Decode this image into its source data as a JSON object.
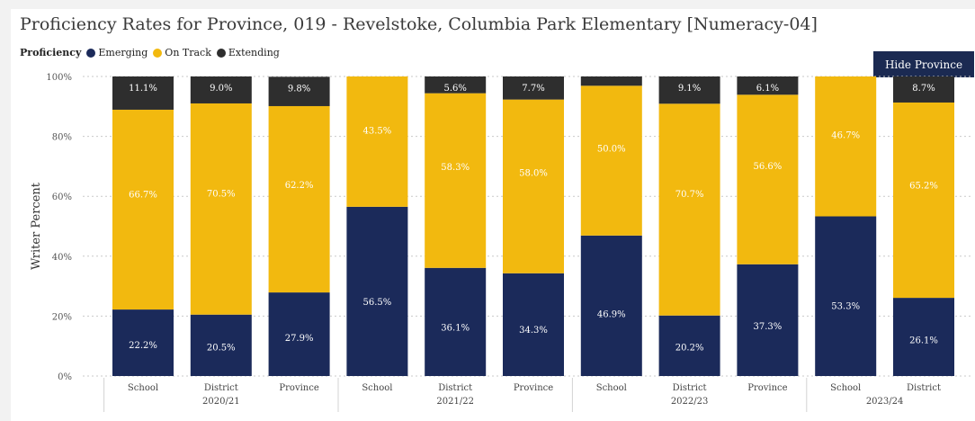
{
  "header": {
    "title": "Proficiency Rates for Province, 019 - Revelstoke, Columbia Park Elementary [Numeracy-04]"
  },
  "legend": {
    "title": "Proficiency",
    "items": [
      {
        "label": "Emerging",
        "color": "#1b2a5a"
      },
      {
        "label": "On Track",
        "color": "#f2b90f"
      },
      {
        "label": "Extending",
        "color": "#2e2e2e"
      }
    ]
  },
  "controls": {
    "hide_province_label": "Hide Province"
  },
  "chart_data": {
    "type": "bar",
    "stacked": true,
    "ylabel": "Writer Percent",
    "ylim": [
      0,
      100
    ],
    "yticks": [
      "0%",
      "20%",
      "40%",
      "60%",
      "80%",
      "100%"
    ],
    "grid": true,
    "legend_position": "top-left",
    "groups": [
      {
        "label": "2020/21",
        "bars": [
          "School",
          "District",
          "Province"
        ]
      },
      {
        "label": "2021/22",
        "bars": [
          "School",
          "District",
          "Province"
        ]
      },
      {
        "label": "2022/23",
        "bars": [
          "School",
          "District",
          "Province"
        ]
      },
      {
        "label": "2023/24",
        "bars": [
          "School",
          "District"
        ]
      }
    ],
    "categories": [
      "School",
      "District",
      "Province",
      "School",
      "District",
      "Province",
      "School",
      "District",
      "Province",
      "School",
      "District"
    ],
    "series": [
      {
        "name": "Emerging",
        "color": "#1b2a5a",
        "values": [
          22.2,
          20.5,
          27.9,
          56.5,
          36.1,
          34.3,
          46.9,
          20.2,
          37.3,
          53.3,
          26.1
        ],
        "labels": [
          "22.2%",
          "20.5%",
          "27.9%",
          "56.5%",
          "36.1%",
          "34.3%",
          "46.9%",
          "20.2%",
          "37.3%",
          "53.3%",
          "26.1%"
        ]
      },
      {
        "name": "On Track",
        "color": "#f2b90f",
        "values": [
          66.7,
          70.5,
          62.2,
          43.5,
          58.3,
          58.0,
          50.0,
          70.7,
          56.6,
          46.7,
          65.2
        ],
        "labels": [
          "66.7%",
          "70.5%",
          "62.2%",
          "43.5%",
          "58.3%",
          "58.0%",
          "50.0%",
          "70.7%",
          "56.6%",
          "46.7%",
          "65.2%"
        ]
      },
      {
        "name": "Extending",
        "color": "#2e2e2e",
        "values": [
          11.1,
          9.0,
          9.8,
          0,
          5.6,
          7.7,
          3.1,
          9.1,
          6.1,
          0,
          8.7
        ],
        "labels": [
          "11.1%",
          "9.0%",
          "9.8%",
          "",
          "5.6%",
          "7.7%",
          "",
          "9.1%",
          "6.1%",
          "",
          "8.7%"
        ]
      }
    ]
  }
}
